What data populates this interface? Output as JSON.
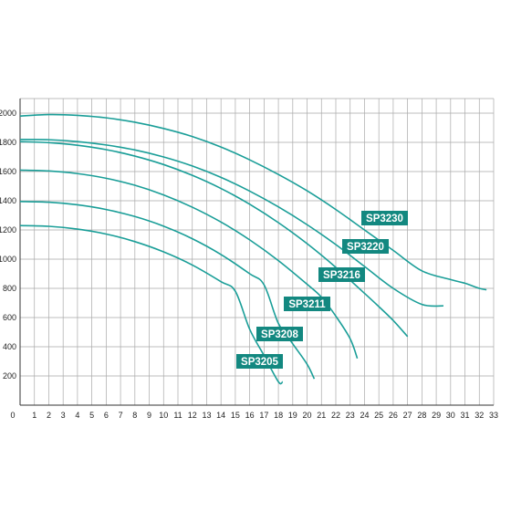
{
  "chart_data": {
    "type": "line",
    "xlim": [
      0,
      33
    ],
    "ylim": [
      0,
      2100
    ],
    "x_ticks": [
      0,
      1,
      2,
      3,
      4,
      5,
      6,
      7,
      8,
      9,
      10,
      11,
      12,
      13,
      14,
      15,
      16,
      17,
      18,
      19,
      20,
      21,
      22,
      23,
      24,
      25,
      26,
      27,
      28,
      29,
      30,
      31,
      32,
      33
    ],
    "y_ticks": [
      200,
      400,
      600,
      800,
      1000,
      1200,
      1400,
      1600,
      1800,
      2000
    ],
    "grid": true,
    "line_color": "#1a9e98",
    "label_bg": "#138880",
    "series": [
      {
        "name": "SP3230",
        "points": [
          [
            0,
            1980
          ],
          [
            2,
            1990
          ],
          [
            4,
            1985
          ],
          [
            6,
            1968
          ],
          [
            8,
            1938
          ],
          [
            10,
            1895
          ],
          [
            12,
            1840
          ],
          [
            14,
            1768
          ],
          [
            16,
            1680
          ],
          [
            18,
            1580
          ],
          [
            20,
            1468
          ],
          [
            22,
            1340
          ],
          [
            24,
            1200
          ],
          [
            26,
            1060
          ],
          [
            28,
            920
          ],
          [
            30,
            860
          ],
          [
            31,
            835
          ],
          [
            32,
            800
          ],
          [
            32.5,
            790
          ]
        ]
      },
      {
        "name": "SP3220",
        "points": [
          [
            0,
            1820
          ],
          [
            2,
            1818
          ],
          [
            4,
            1805
          ],
          [
            6,
            1782
          ],
          [
            8,
            1748
          ],
          [
            10,
            1700
          ],
          [
            12,
            1638
          ],
          [
            14,
            1560
          ],
          [
            16,
            1466
          ],
          [
            18,
            1358
          ],
          [
            20,
            1236
          ],
          [
            22,
            1100
          ],
          [
            24,
            950
          ],
          [
            26,
            800
          ],
          [
            28,
            690
          ],
          [
            29.5,
            680
          ]
        ]
      },
      {
        "name": "SP3216",
        "points": [
          [
            0,
            1805
          ],
          [
            2,
            1798
          ],
          [
            4,
            1780
          ],
          [
            6,
            1750
          ],
          [
            8,
            1706
          ],
          [
            10,
            1648
          ],
          [
            12,
            1574
          ],
          [
            14,
            1484
          ],
          [
            16,
            1376
          ],
          [
            18,
            1250
          ],
          [
            20,
            1106
          ],
          [
            22,
            944
          ],
          [
            24,
            766
          ],
          [
            25,
            675
          ],
          [
            26,
            580
          ],
          [
            27,
            470
          ]
        ]
      },
      {
        "name": "SP3211",
        "points": [
          [
            0,
            1610
          ],
          [
            2,
            1604
          ],
          [
            4,
            1586
          ],
          [
            6,
            1554
          ],
          [
            8,
            1506
          ],
          [
            10,
            1440
          ],
          [
            12,
            1356
          ],
          [
            14,
            1254
          ],
          [
            16,
            1132
          ],
          [
            18,
            990
          ],
          [
            20,
            828
          ],
          [
            21,
            740
          ],
          [
            22,
            610
          ],
          [
            23,
            455
          ],
          [
            23.5,
            320
          ]
        ]
      },
      {
        "name": "SP3208",
        "points": [
          [
            0,
            1395
          ],
          [
            2,
            1390
          ],
          [
            4,
            1372
          ],
          [
            6,
            1340
          ],
          [
            8,
            1292
          ],
          [
            10,
            1226
          ],
          [
            12,
            1140
          ],
          [
            14,
            1032
          ],
          [
            16,
            900
          ],
          [
            17,
            824
          ],
          [
            18,
            560
          ],
          [
            19,
            420
          ],
          [
            20,
            280
          ],
          [
            20.5,
            180
          ]
        ]
      },
      {
        "name": "SP3205",
        "points": [
          [
            0,
            1230
          ],
          [
            2,
            1225
          ],
          [
            4,
            1206
          ],
          [
            6,
            1172
          ],
          [
            8,
            1120
          ],
          [
            10,
            1050
          ],
          [
            12,
            960
          ],
          [
            14,
            846
          ],
          [
            15,
            780
          ],
          [
            16,
            520
          ],
          [
            17,
            340
          ],
          [
            18,
            160
          ],
          [
            18.3,
            160
          ]
        ]
      }
    ]
  }
}
